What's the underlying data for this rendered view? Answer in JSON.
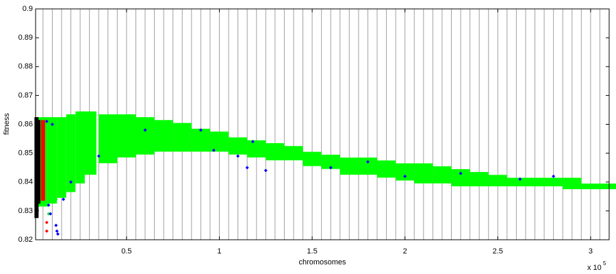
{
  "chart_data": {
    "type": "scatter",
    "xlabel": "chromosomes",
    "ylabel": "fitness",
    "x_multiplier": {
      "base": "x 10",
      "exponent": "5"
    },
    "xlim": [
      1000,
      310000
    ],
    "ylim": [
      0.82,
      0.9
    ],
    "xticks": [
      {
        "value": 50000,
        "label": "0.5"
      },
      {
        "value": 100000,
        "label": "1"
      },
      {
        "value": 150000,
        "label": "1.5"
      },
      {
        "value": 200000,
        "label": "2"
      },
      {
        "value": 250000,
        "label": "2.5"
      },
      {
        "value": 300000,
        "label": "3"
      }
    ],
    "yticks": [
      0.82,
      0.83,
      0.84,
      0.85,
      0.86,
      0.87,
      0.88,
      0.89,
      0.9
    ],
    "xgrid": [
      5000,
      10000,
      15000,
      20000,
      25000,
      30000,
      35000,
      40000,
      45000,
      50000,
      55000,
      60000,
      65000,
      70000,
      75000,
      80000,
      85000,
      90000,
      95000,
      100000,
      105000,
      110000,
      115000,
      120000,
      125000,
      130000,
      135000,
      140000,
      145000,
      150000,
      155000,
      160000,
      165000,
      170000,
      175000,
      180000,
      185000,
      190000,
      195000,
      200000,
      205000,
      210000,
      215000,
      220000,
      225000,
      230000,
      235000,
      240000,
      245000,
      250000,
      255000,
      260000,
      265000,
      270000,
      275000,
      280000,
      285000,
      290000,
      295000,
      300000,
      305000
    ],
    "grid": true,
    "series": [
      {
        "color": "#00ff00",
        "x": [
          5000,
          10000,
          15000,
          20000,
          25000,
          30000,
          40000,
          50000,
          60000,
          70000,
          80000,
          90000,
          100000,
          110000,
          120000,
          130000,
          140000,
          150000,
          160000,
          170000,
          180000,
          190000,
          200000,
          210000,
          220000,
          230000,
          240000,
          250000,
          260000,
          270000,
          280000,
          290000,
          300000,
          310000
        ],
        "values": [
          0.862,
          0.862,
          0.862,
          0.863,
          0.864,
          0.864,
          0.863,
          0.863,
          0.862,
          0.861,
          0.86,
          0.858,
          0.857,
          0.855,
          0.854,
          0.853,
          0.852,
          0.85,
          0.849,
          0.848,
          0.848,
          0.847,
          0.846,
          0.846,
          0.845,
          0.844,
          0.843,
          0.842,
          0.841,
          0.841,
          0.841,
          0.841,
          0.839,
          0.839
        ],
        "low": [
          0.832,
          0.833,
          0.835,
          0.837,
          0.84,
          0.843,
          0.847,
          0.849,
          0.85,
          0.851,
          0.851,
          0.851,
          0.851,
          0.85,
          0.849,
          0.848,
          0.848,
          0.846,
          0.845,
          0.843,
          0.843,
          0.842,
          0.841,
          0.84,
          0.84,
          0.839,
          0.839,
          0.839,
          0.839,
          0.839,
          0.839,
          0.838,
          0.838,
          0.838
        ]
      },
      {
        "color": "#00ff00",
        "x": [
          8000,
          12000,
          17000
        ],
        "values": [
          0.829,
          0.834,
          0.838
        ]
      },
      {
        "color": "#000000",
        "x": [
          1500,
          2500
        ],
        "values": [
          0.862,
          0.861
        ],
        "low": [
          0.828,
          0.833
        ]
      },
      {
        "color": "#ff0000",
        "x": [
          5000,
          7000,
          7000
        ],
        "values": [
          0.861,
          0.826,
          0.823
        ],
        "low": [
          0.834,
          null,
          null
        ]
      },
      {
        "color": "#0000ff",
        "x": [
          7000,
          10000,
          8000,
          9000,
          12000,
          13000,
          12500,
          16000,
          20000,
          35000,
          60000,
          90000,
          118000,
          115000,
          110000,
          125000,
          160000,
          200000,
          230000,
          262000,
          280000,
          180000,
          97000
        ],
        "values": [
          0.861,
          0.86,
          0.832,
          0.829,
          0.825,
          0.822,
          0.823,
          0.834,
          0.84,
          0.849,
          0.858,
          0.858,
          0.854,
          0.845,
          0.849,
          0.844,
          0.845,
          0.842,
          0.843,
          0.841,
          0.842,
          0.847,
          0.851
        ]
      }
    ]
  }
}
